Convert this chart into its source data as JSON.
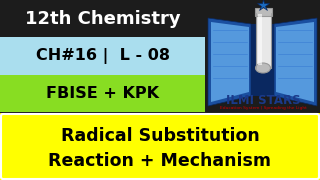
{
  "bg_color": "#1c1c1c",
  "title_text": "12th Chemistry",
  "title_color": "#ffffff",
  "ch_text": "CH#16 |  L - 08",
  "ch_bg": "#aadeee",
  "ch_color": "#000000",
  "board_text": "FBISE + KPK",
  "board_bg": "#88dd22",
  "board_color": "#000000",
  "bottom_bg": "#ffff00",
  "bottom_line1": "Radical Substitution",
  "bottom_line2": "Reaction + Mechanism",
  "bottom_color": "#000000",
  "logo_text1": "ILMI STARS",
  "logo_text2": "Education System | Spreading the Light",
  "logo_color": "#1a3a8a",
  "logo_sub_color": "#cc0000",
  "divider_color": "#555555",
  "border_color": "#888888",
  "book_dark": "#1a4fa0",
  "book_mid": "#2266cc",
  "book_light": "#5599dd",
  "book_inner": "#7ab8e8",
  "spine_color": "#0a2860",
  "tube_body": "#e8e8e8",
  "tube_dark": "#999999",
  "tube_rim": "#bbbbbb",
  "star_color": "#1a6abf"
}
